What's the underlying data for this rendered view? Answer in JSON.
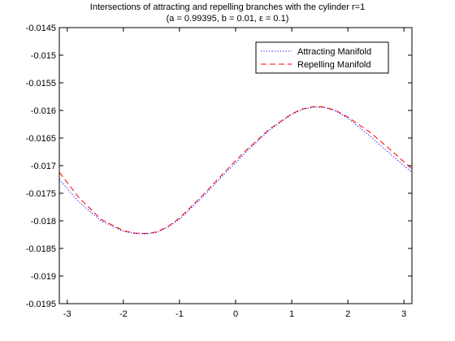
{
  "chart_data": {
    "type": "line",
    "title": "Intersections of attracting and repelling branches with the cylinder r=1",
    "subtitle": "(a = 0.99395, b = 0.01, ε = 0.1)",
    "xlabel": "",
    "ylabel": "",
    "xlim": [
      -3.14159,
      3.14159
    ],
    "ylim": [
      -0.0195,
      -0.0145
    ],
    "xticks": [
      -3,
      -2,
      -1,
      0,
      1,
      2,
      3
    ],
    "xtick_labels": [
      "-3",
      "-2",
      "-1",
      "0",
      "1",
      "2",
      "3"
    ],
    "yticks": [
      -0.0145,
      -0.015,
      -0.0155,
      -0.016,
      -0.0165,
      -0.017,
      -0.0175,
      -0.018,
      -0.0185,
      -0.019,
      -0.0195
    ],
    "ytick_labels": [
      "-0.0145",
      "-0.015",
      "-0.0155",
      "-0.016",
      "-0.0165",
      "-0.017",
      "-0.0175",
      "-0.018",
      "-0.0185",
      "-0.019",
      "-0.0195"
    ],
    "grid": false,
    "legend_position": "top-right",
    "x": [
      -3.14159,
      -2.8,
      -2.4,
      -2.0,
      -1.8,
      -1.6,
      -1.4,
      -1.2,
      -1.0,
      -0.6,
      -0.2,
      0.0,
      0.2,
      0.6,
      1.0,
      1.2,
      1.4,
      1.6,
      1.8,
      2.0,
      2.4,
      2.8,
      3.14159
    ],
    "series": [
      {
        "name": "Attracting Manifold",
        "color": "#0000ff",
        "style": "dotted",
        "values": [
          -0.01725,
          -0.01765,
          -0.018,
          -0.01819,
          -0.01823,
          -0.01824,
          -0.01821,
          -0.01811,
          -0.01797,
          -0.01758,
          -0.01715,
          -0.01695,
          -0.01674,
          -0.01636,
          -0.01607,
          -0.01598,
          -0.01594,
          -0.01595,
          -0.01602,
          -0.01614,
          -0.01647,
          -0.01683,
          -0.01712
        ]
      },
      {
        "name": "Repelling Manifold",
        "color": "#ff0000",
        "style": "dashed",
        "values": [
          -0.01712,
          -0.01757,
          -0.01797,
          -0.01818,
          -0.01822,
          -0.01823,
          -0.0182,
          -0.0181,
          -0.01795,
          -0.01755,
          -0.01712,
          -0.01691,
          -0.01671,
          -0.01634,
          -0.01606,
          -0.01597,
          -0.01593,
          -0.01594,
          -0.01601,
          -0.01612,
          -0.0164,
          -0.01675,
          -0.01706
        ]
      }
    ]
  }
}
